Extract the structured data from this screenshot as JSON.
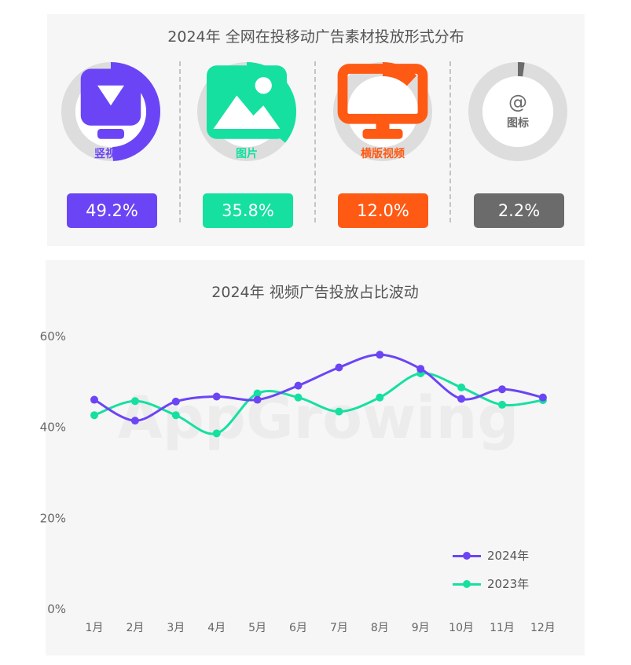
{
  "top_panel": {
    "title": "2024年 全网在投移动广告素材投放形式分布",
    "items": [
      {
        "label": "竖视频",
        "value_text": "49.2%",
        "color": "#6b45f5",
        "icon": "vertical-video-icon"
      },
      {
        "label": "图片",
        "value_text": "35.8%",
        "color": "#16e0a0",
        "icon": "image-icon"
      },
      {
        "label": "横版视频",
        "value_text": "12.0%",
        "color": "#ff5a14",
        "icon": "monitor-icon"
      },
      {
        "label": "图标",
        "value_text": "2.2%",
        "color": "#6b6b6b",
        "icon": "at-icon"
      }
    ]
  },
  "chart_data": [
    {
      "type": "pie",
      "title": "2024年 全网在投移动广告素材投放形式分布",
      "labels": [
        "竖视频",
        "图片",
        "横版视频",
        "图标"
      ],
      "values": [
        49.2,
        35.8,
        12.0,
        2.2
      ],
      "colors": [
        "#6b45f5",
        "#16e0a0",
        "#ff5a14",
        "#6b6b6b"
      ],
      "style": "separate donut per category, remainder in light gray"
    },
    {
      "type": "line",
      "title": "2024年 视频广告投放占比波动",
      "categories": [
        "1月",
        "2月",
        "3月",
        "4月",
        "5月",
        "6月",
        "7月",
        "8月",
        "9月",
        "10月",
        "11月",
        "12月"
      ],
      "series": [
        {
          "name": "2024年",
          "color": "#6b45f5",
          "values": [
            45.9,
            41.3,
            45.5,
            46.6,
            45.9,
            49.0,
            53.0,
            55.8,
            52.7,
            46.1,
            48.2,
            46.4
          ]
        },
        {
          "name": "2023年",
          "color": "#16e0a0",
          "values": [
            42.5,
            45.6,
            42.5,
            38.5,
            47.3,
            46.4,
            43.3,
            46.4,
            51.7,
            48.6,
            44.8,
            45.8
          ]
        }
      ],
      "yticks": [
        "0%",
        "20%",
        "40%",
        "60%"
      ],
      "ylim": [
        0,
        60
      ],
      "grid": false,
      "legend": "bottom-right",
      "watermark": "AppGrowing"
    }
  ]
}
